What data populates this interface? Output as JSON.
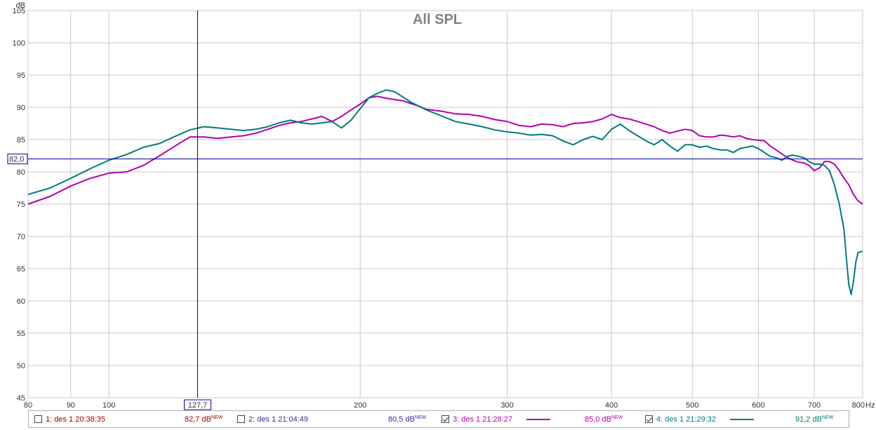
{
  "chart_data": {
    "type": "line",
    "title": "All SPL",
    "ylabel": "dB",
    "xunit": "Hz",
    "xscale": "log",
    "xlim": [
      80,
      800
    ],
    "ylim": [
      45,
      105
    ],
    "grid": true,
    "x_ticks": [
      "80",
      "90",
      "100",
      "200",
      "300",
      "400",
      "500",
      "600",
      "700",
      "800"
    ],
    "x_ticks_minor": [
      80,
      90,
      100,
      200,
      300,
      400,
      500,
      600,
      700,
      800
    ],
    "y_ticks": [
      45,
      50,
      55,
      60,
      65,
      70,
      75,
      80,
      85,
      90,
      95,
      100,
      105
    ],
    "cursor": {
      "x": 127.7,
      "y": 82.0,
      "x_label": "127,7",
      "y_label": "82,0"
    },
    "series": [
      {
        "name": "3: des 1 21:28:27",
        "color": "#b000b0",
        "points": [
          [
            80,
            75.0
          ],
          [
            85,
            76.2
          ],
          [
            90,
            77.8
          ],
          [
            95,
            79.0
          ],
          [
            100,
            79.8
          ],
          [
            105,
            80.0
          ],
          [
            110,
            81.0
          ],
          [
            115,
            82.5
          ],
          [
            120,
            84.0
          ],
          [
            125,
            85.4
          ],
          [
            130,
            85.4
          ],
          [
            135,
            85.2
          ],
          [
            140,
            85.4
          ],
          [
            145,
            85.6
          ],
          [
            150,
            86.0
          ],
          [
            155,
            86.6
          ],
          [
            160,
            87.2
          ],
          [
            165,
            87.6
          ],
          [
            170,
            87.8
          ],
          [
            175,
            88.2
          ],
          [
            180,
            88.6
          ],
          [
            185,
            87.8
          ],
          [
            190,
            88.6
          ],
          [
            195,
            89.6
          ],
          [
            200,
            90.5
          ],
          [
            205,
            91.5
          ],
          [
            210,
            91.7
          ],
          [
            215,
            91.4
          ],
          [
            220,
            91.2
          ],
          [
            225,
            91.0
          ],
          [
            230,
            90.6
          ],
          [
            235,
            90.2
          ],
          [
            240,
            89.7
          ],
          [
            250,
            89.4
          ],
          [
            260,
            89.0
          ],
          [
            270,
            88.9
          ],
          [
            280,
            88.6
          ],
          [
            290,
            88.1
          ],
          [
            300,
            87.8
          ],
          [
            310,
            87.2
          ],
          [
            320,
            87.0
          ],
          [
            330,
            87.4
          ],
          [
            340,
            87.3
          ],
          [
            350,
            87.0
          ],
          [
            360,
            87.5
          ],
          [
            370,
            87.6
          ],
          [
            380,
            87.8
          ],
          [
            390,
            88.2
          ],
          [
            400,
            88.9
          ],
          [
            410,
            88.4
          ],
          [
            420,
            88.2
          ],
          [
            430,
            87.8
          ],
          [
            440,
            87.4
          ],
          [
            450,
            87.0
          ],
          [
            460,
            86.4
          ],
          [
            470,
            86.0
          ],
          [
            480,
            86.3
          ],
          [
            490,
            86.6
          ],
          [
            500,
            86.4
          ],
          [
            510,
            85.6
          ],
          [
            520,
            85.4
          ],
          [
            530,
            85.4
          ],
          [
            540,
            85.7
          ],
          [
            550,
            85.6
          ],
          [
            560,
            85.4
          ],
          [
            570,
            85.6
          ],
          [
            580,
            85.2
          ],
          [
            590,
            85.0
          ],
          [
            600,
            84.9
          ],
          [
            610,
            84.8
          ],
          [
            620,
            84.0
          ],
          [
            630,
            83.4
          ],
          [
            640,
            82.8
          ],
          [
            650,
            82.2
          ],
          [
            660,
            81.8
          ],
          [
            670,
            81.5
          ],
          [
            680,
            81.4
          ],
          [
            690,
            81.0
          ],
          [
            700,
            80.2
          ],
          [
            710,
            80.6
          ],
          [
            720,
            81.6
          ],
          [
            730,
            81.6
          ],
          [
            740,
            81.2
          ],
          [
            750,
            80.2
          ],
          [
            760,
            79.0
          ],
          [
            770,
            78.0
          ],
          [
            780,
            76.5
          ],
          [
            790,
            75.5
          ],
          [
            800,
            75.0
          ]
        ]
      },
      {
        "name": "4: des 1 21:29:32",
        "color": "#007b7b",
        "points": [
          [
            80,
            76.5
          ],
          [
            85,
            77.5
          ],
          [
            90,
            79.0
          ],
          [
            95,
            80.5
          ],
          [
            100,
            81.8
          ],
          [
            105,
            82.7
          ],
          [
            110,
            83.8
          ],
          [
            115,
            84.4
          ],
          [
            120,
            85.5
          ],
          [
            125,
            86.5
          ],
          [
            130,
            87.0
          ],
          [
            135,
            86.8
          ],
          [
            140,
            86.6
          ],
          [
            145,
            86.4
          ],
          [
            150,
            86.6
          ],
          [
            155,
            87.0
          ],
          [
            160,
            87.6
          ],
          [
            165,
            88.0
          ],
          [
            170,
            87.6
          ],
          [
            175,
            87.4
          ],
          [
            180,
            87.6
          ],
          [
            185,
            87.8
          ],
          [
            190,
            86.8
          ],
          [
            195,
            88.0
          ],
          [
            200,
            89.8
          ],
          [
            205,
            91.5
          ],
          [
            210,
            92.2
          ],
          [
            215,
            92.7
          ],
          [
            220,
            92.4
          ],
          [
            225,
            91.6
          ],
          [
            230,
            90.8
          ],
          [
            235,
            90.2
          ],
          [
            240,
            89.6
          ],
          [
            250,
            88.7
          ],
          [
            260,
            87.8
          ],
          [
            270,
            87.4
          ],
          [
            280,
            87.0
          ],
          [
            290,
            86.5
          ],
          [
            300,
            86.2
          ],
          [
            310,
            86.0
          ],
          [
            320,
            85.7
          ],
          [
            330,
            85.8
          ],
          [
            340,
            85.6
          ],
          [
            350,
            84.8
          ],
          [
            360,
            84.2
          ],
          [
            370,
            85.0
          ],
          [
            380,
            85.5
          ],
          [
            390,
            85.0
          ],
          [
            400,
            86.6
          ],
          [
            410,
            87.4
          ],
          [
            420,
            86.4
          ],
          [
            430,
            85.6
          ],
          [
            440,
            84.8
          ],
          [
            450,
            84.2
          ],
          [
            460,
            85.0
          ],
          [
            470,
            84.0
          ],
          [
            480,
            83.2
          ],
          [
            490,
            84.2
          ],
          [
            500,
            84.2
          ],
          [
            510,
            83.8
          ],
          [
            520,
            84.0
          ],
          [
            530,
            83.6
          ],
          [
            540,
            83.4
          ],
          [
            550,
            83.4
          ],
          [
            560,
            83.0
          ],
          [
            570,
            83.6
          ],
          [
            580,
            83.8
          ],
          [
            590,
            84.0
          ],
          [
            600,
            83.6
          ],
          [
            610,
            83.0
          ],
          [
            620,
            82.4
          ],
          [
            630,
            82.2
          ],
          [
            640,
            81.8
          ],
          [
            650,
            82.4
          ],
          [
            660,
            82.6
          ],
          [
            670,
            82.4
          ],
          [
            680,
            82.2
          ],
          [
            690,
            81.6
          ],
          [
            700,
            81.2
          ],
          [
            710,
            81.2
          ],
          [
            720,
            81.0
          ],
          [
            730,
            80.2
          ],
          [
            740,
            78.0
          ],
          [
            750,
            75.0
          ],
          [
            760,
            71.0
          ],
          [
            765,
            66.5
          ],
          [
            770,
            62.5
          ],
          [
            775,
            61.0
          ],
          [
            780,
            63.0
          ],
          [
            785,
            66.0
          ],
          [
            790,
            67.5
          ],
          [
            800,
            67.7
          ]
        ]
      }
    ]
  },
  "legend": [
    {
      "label": "1: des 1 20:38:35",
      "checked": false,
      "value": "82,7 dB",
      "badge": "NEW",
      "color": "#a00000",
      "value_color": "#a00000"
    },
    {
      "label": "2: des 1 21:04:49",
      "checked": false,
      "value": "80,5 dB",
      "badge": "NEW",
      "color": "#3030a0",
      "value_color": "#3030a0"
    },
    {
      "label": "3: des 1 21:28:27",
      "checked": true,
      "value": "85,0 dB",
      "badge": "NEW",
      "color": "#b000b0",
      "value_color": "#b000b0"
    },
    {
      "label": "4: des 1 21:29:32",
      "checked": true,
      "value": "91,2 dB",
      "badge": "NEW",
      "color": "#007b7b",
      "value_color": "#007b7b"
    }
  ]
}
